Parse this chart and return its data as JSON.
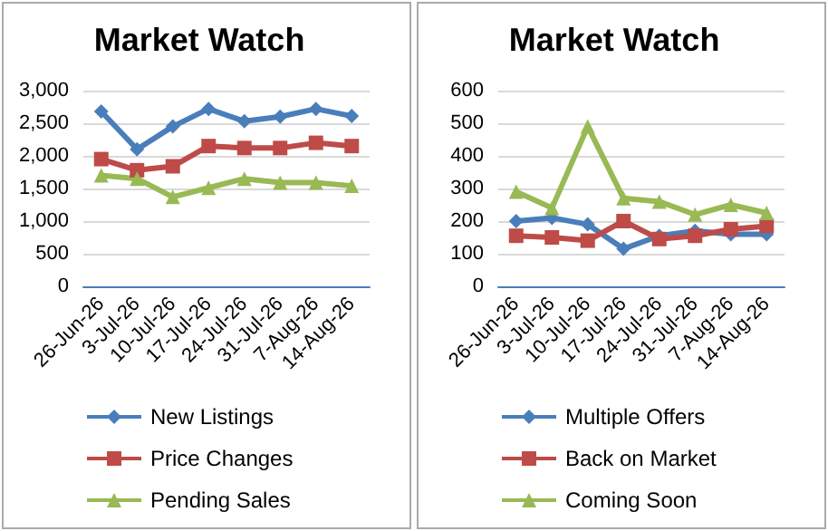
{
  "chart_data": [
    {
      "type": "line",
      "title": "Market Watch",
      "categories": [
        "26-Jun-26",
        "3-Jul-26",
        "10-Jul-26",
        "17-Jul-26",
        "24-Jul-26",
        "31-Jul-26",
        "7-Aug-26",
        "14-Aug-26"
      ],
      "series": [
        {
          "name": "New Listings",
          "color": "#4a7ebb",
          "marker": "diamond",
          "values": [
            2680,
            2100,
            2450,
            2720,
            2530,
            2600,
            2720,
            2610
          ]
        },
        {
          "name": "Price Changes",
          "color": "#be4b48",
          "marker": "square",
          "values": [
            1950,
            1780,
            1840,
            2150,
            2120,
            2120,
            2200,
            2150
          ]
        },
        {
          "name": "Pending Sales",
          "color": "#98b954",
          "marker": "triangle",
          "values": [
            1700,
            1650,
            1370,
            1510,
            1650,
            1590,
            1590,
            1540
          ]
        }
      ],
      "ylim": [
        0,
        3000
      ],
      "yticks": [
        {
          "value": 0,
          "label": "0"
        },
        {
          "value": 500,
          "label": "500"
        },
        {
          "value": 1000,
          "label": "1,000"
        },
        {
          "value": 1500,
          "label": "1,500"
        },
        {
          "value": 2000,
          "label": "2,000"
        },
        {
          "value": 2500,
          "label": "2,500"
        },
        {
          "value": 3000,
          "label": "3,000"
        }
      ],
      "grid": "y",
      "legend": "bottom"
    },
    {
      "type": "line",
      "title": "Market Watch",
      "categories": [
        "26-Jun-26",
        "3-Jul-26",
        "10-Jul-26",
        "17-Jul-26",
        "24-Jul-26",
        "31-Jul-26",
        "7-Aug-26",
        "14-Aug-26"
      ],
      "series": [
        {
          "name": "Multiple Offers",
          "color": "#4a7ebb",
          "marker": "diamond",
          "values": [
            200,
            210,
            190,
            115,
            155,
            170,
            160,
            160
          ]
        },
        {
          "name": "Back on Market",
          "color": "#be4b48",
          "marker": "square",
          "values": [
            155,
            150,
            140,
            200,
            145,
            155,
            175,
            185
          ]
        },
        {
          "name": "Coming Soon",
          "color": "#98b954",
          "marker": "triangle",
          "values": [
            290,
            240,
            490,
            270,
            260,
            220,
            250,
            225
          ]
        }
      ],
      "ylim": [
        0,
        600
      ],
      "yticks": [
        0,
        100,
        200,
        300,
        400,
        500,
        600
      ],
      "grid": "y",
      "legend": "bottom"
    }
  ]
}
